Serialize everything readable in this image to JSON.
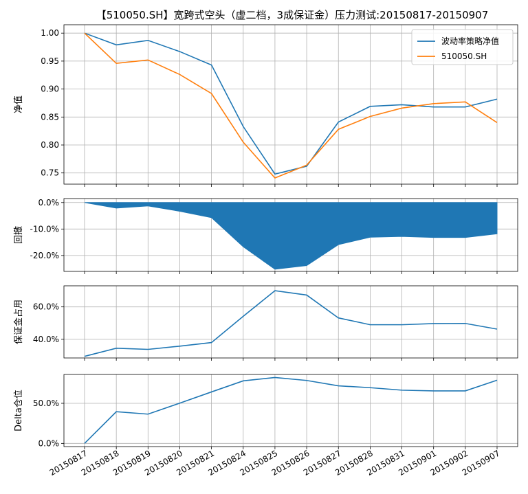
{
  "chart_data": {
    "title": "【510050.SH】宽跨式空头（虚二档，3成保证金）压力测试:20150817-20150907",
    "x_dates": [
      "20150817",
      "20150818",
      "20150819",
      "20150820",
      "20150821",
      "20150824",
      "20150825",
      "20150826",
      "20150827",
      "20150828",
      "20150831",
      "20150901",
      "20150902",
      "20150907"
    ],
    "grid": true,
    "panels": [
      {
        "id": "nav",
        "type": "line",
        "ylabel": "净值",
        "ylim": [
          0.73,
          1.015
        ],
        "yticks": [
          0.75,
          0.8,
          0.85,
          0.9,
          0.95,
          1.0
        ],
        "ytick_labels": [
          "0.75",
          "0.80",
          "0.85",
          "0.90",
          "0.95",
          "1.00"
        ],
        "legend": "top-right",
        "series": [
          {
            "name": "波动率策略净值",
            "color": "#1f77b4",
            "values": [
              1.0,
              0.979,
              0.987,
              0.967,
              0.943,
              0.833,
              0.748,
              0.762,
              0.841,
              0.869,
              0.872,
              0.868,
              0.868,
              0.882
            ]
          },
          {
            "name": "510050.SH",
            "color": "#ff7f0e",
            "values": [
              1.0,
              0.946,
              0.952,
              0.926,
              0.892,
              0.805,
              0.741,
              0.764,
              0.828,
              0.851,
              0.866,
              0.874,
              0.877,
              0.84
            ]
          }
        ]
      },
      {
        "id": "drawdown",
        "type": "area",
        "ylabel": "回撤",
        "ylim": [
          -0.26,
          0.015
        ],
        "yticks": [
          0.0,
          -0.1,
          -0.2
        ],
        "ytick_labels": [
          "0.0%",
          "-10.0%",
          "-20.0%"
        ],
        "series": [
          {
            "name": "",
            "color": "#1f77b4",
            "values": [
              0.0,
              -0.021,
              -0.013,
              -0.033,
              -0.057,
              -0.167,
              -0.252,
              -0.238,
              -0.159,
              -0.131,
              -0.128,
              -0.132,
              -0.132,
              -0.118
            ]
          }
        ]
      },
      {
        "id": "margin",
        "type": "line",
        "ylabel": "保证金占用",
        "ylim": [
          0.285,
          0.73
        ],
        "yticks": [
          0.4,
          0.6
        ],
        "ytick_labels": [
          "40.0%",
          "60.0%"
        ],
        "series": [
          {
            "name": "",
            "color": "#1f77b4",
            "values": [
              0.295,
              0.345,
              0.338,
              0.358,
              0.38,
              0.542,
              0.7,
              0.673,
              0.532,
              0.49,
              0.49,
              0.497,
              0.498,
              0.463
            ]
          }
        ]
      },
      {
        "id": "delta",
        "type": "line",
        "ylabel": "Delta仓位",
        "ylim": [
          -0.04,
          0.86
        ],
        "yticks": [
          0.0,
          0.5
        ],
        "ytick_labels": [
          "0.0%",
          "50.0%"
        ],
        "series": [
          {
            "name": "",
            "color": "#1f77b4",
            "values": [
              0.0,
              0.395,
              0.365,
              0.502,
              0.642,
              0.78,
              0.822,
              0.785,
              0.718,
              0.695,
              0.664,
              0.655,
              0.655,
              0.788
            ]
          }
        ]
      }
    ]
  }
}
